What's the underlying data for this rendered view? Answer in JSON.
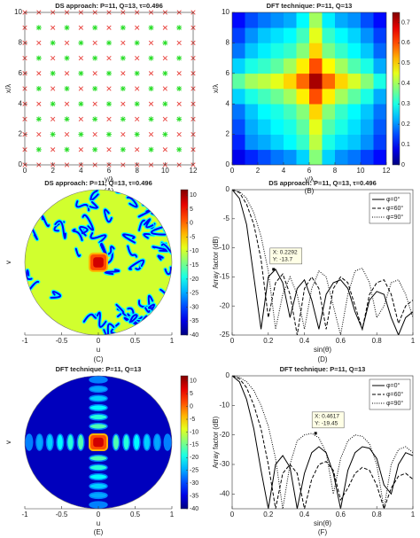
{
  "chart_data": [
    {
      "type": "scatter-grid",
      "caption": "(A)",
      "title": "DS approach: P=11, Q=13, τ=0.496",
      "xlabel": "y/λ",
      "ylabel": "x/λ",
      "xlim": [
        0,
        12
      ],
      "ylim": [
        0,
        10
      ],
      "xticks": [
        0,
        2,
        4,
        6,
        8,
        10,
        12
      ],
      "yticks": [
        0,
        2,
        4,
        6,
        8,
        10
      ],
      "x": [
        0,
        1,
        2,
        3,
        4,
        5,
        6,
        7,
        8,
        9,
        10,
        11,
        12
      ],
      "y": [
        0,
        1,
        2,
        3,
        4,
        5,
        6,
        7,
        8,
        9,
        10
      ],
      "marker_colors": [
        "#e8413c",
        "#22dd22"
      ],
      "values": [
        [
          0,
          0,
          0,
          0,
          0,
          0,
          0,
          0,
          0,
          0,
          0,
          0,
          0
        ],
        [
          0,
          1,
          0,
          1,
          0,
          1,
          0,
          1,
          0,
          1,
          0,
          1,
          0
        ],
        [
          0,
          0,
          1,
          0,
          1,
          0,
          1,
          0,
          1,
          0,
          1,
          0,
          0
        ],
        [
          0,
          1,
          0,
          1,
          0,
          1,
          0,
          1,
          0,
          1,
          0,
          1,
          0
        ],
        [
          0,
          0,
          1,
          0,
          1,
          0,
          1,
          0,
          1,
          0,
          1,
          0,
          0
        ],
        [
          0,
          1,
          0,
          1,
          0,
          1,
          0,
          1,
          0,
          1,
          0,
          1,
          0
        ],
        [
          0,
          0,
          1,
          0,
          1,
          0,
          1,
          0,
          1,
          0,
          1,
          0,
          0
        ],
        [
          0,
          1,
          0,
          1,
          0,
          1,
          0,
          1,
          0,
          1,
          0,
          1,
          0
        ],
        [
          0,
          0,
          1,
          0,
          1,
          0,
          1,
          0,
          1,
          0,
          1,
          0,
          0
        ],
        [
          0,
          1,
          0,
          1,
          0,
          1,
          0,
          1,
          0,
          1,
          0,
          1,
          0
        ],
        [
          0,
          0,
          0,
          0,
          0,
          0,
          0,
          0,
          0,
          0,
          0,
          0,
          0
        ]
      ]
    },
    {
      "type": "heatmap",
      "caption": "(B)",
      "title": "DFT technique: P=11, Q=13",
      "xlabel": "y/λ",
      "ylabel": "x/λ",
      "xlim": [
        0,
        12
      ],
      "ylim": [
        0,
        10
      ],
      "xticks": [
        0,
        2,
        4,
        6,
        8,
        10,
        12
      ],
      "yticks": [
        0,
        2,
        4,
        6,
        8,
        10
      ],
      "colormap": "jet",
      "clim": [
        0,
        0.75
      ],
      "colorbar_ticks": [
        0,
        0.1,
        0.2,
        0.3,
        0.4,
        0.5,
        0.6,
        0.7
      ],
      "values": [
        [
          0.08,
          0.12,
          0.15,
          0.18,
          0.2,
          0.25,
          0.38,
          0.25,
          0.2,
          0.18,
          0.14,
          0.1
        ],
        [
          0.12,
          0.2,
          0.22,
          0.25,
          0.28,
          0.32,
          0.42,
          0.3,
          0.26,
          0.24,
          0.2,
          0.14
        ],
        [
          0.15,
          0.22,
          0.25,
          0.28,
          0.3,
          0.35,
          0.45,
          0.34,
          0.3,
          0.26,
          0.22,
          0.16
        ],
        [
          0.18,
          0.24,
          0.28,
          0.3,
          0.33,
          0.38,
          0.5,
          0.38,
          0.32,
          0.28,
          0.24,
          0.18
        ],
        [
          0.25,
          0.3,
          0.33,
          0.36,
          0.4,
          0.48,
          0.6,
          0.48,
          0.4,
          0.35,
          0.3,
          0.22
        ],
        [
          0.35,
          0.4,
          0.42,
          0.45,
          0.5,
          0.58,
          0.72,
          0.58,
          0.5,
          0.44,
          0.38,
          0.3
        ],
        [
          0.25,
          0.3,
          0.32,
          0.35,
          0.4,
          0.48,
          0.6,
          0.47,
          0.4,
          0.34,
          0.3,
          0.22
        ],
        [
          0.18,
          0.24,
          0.27,
          0.3,
          0.32,
          0.38,
          0.5,
          0.37,
          0.32,
          0.28,
          0.24,
          0.17
        ],
        [
          0.14,
          0.2,
          0.24,
          0.26,
          0.28,
          0.33,
          0.45,
          0.32,
          0.28,
          0.25,
          0.2,
          0.14
        ],
        [
          0.1,
          0.15,
          0.18,
          0.2,
          0.22,
          0.28,
          0.4,
          0.27,
          0.22,
          0.2,
          0.15,
          0.1
        ]
      ]
    },
    {
      "type": "pattern",
      "style": "ds",
      "caption": "(C)",
      "title": "DS approach: P=11, Q=13, τ=0.496",
      "xlabel": "u",
      "ylabel": "v",
      "xlim": [
        -1,
        1
      ],
      "ylim": [
        -1,
        1
      ],
      "xticks": [
        -1,
        -0.5,
        0,
        0.5,
        1
      ],
      "colormap": "jet",
      "clim": [
        -40,
        12
      ],
      "colorbar_ticks": [
        10,
        5,
        0,
        -5,
        -10,
        -15,
        -20,
        -25,
        -30,
        -35,
        -40
      ]
    },
    {
      "type": "line",
      "caption": "(D)",
      "title": "DS approach: P=11, Q=13, τ=0.496",
      "xlabel": "sin(θ)",
      "ylabel": "Array factor (dB)",
      "xlim": [
        0,
        1
      ],
      "ylim": [
        -25,
        0
      ],
      "xticks": [
        0,
        0.2,
        0.4,
        0.6,
        0.8,
        1
      ],
      "yticks": [
        -25,
        -20,
        -15,
        -10,
        -5,
        0
      ],
      "legend": "northeast",
      "x": [
        0,
        0.04,
        0.08,
        0.12,
        0.16,
        0.2,
        0.24,
        0.28,
        0.32,
        0.36,
        0.4,
        0.44,
        0.48,
        0.52,
        0.56,
        0.6,
        0.64,
        0.68,
        0.72,
        0.76,
        0.8,
        0.84,
        0.88,
        0.92,
        0.96,
        1
      ],
      "series": [
        {
          "name": "φ=0°",
          "color": "#000000",
          "dash": "solid",
          "values": [
            0,
            -1.5,
            -6,
            -15,
            -24,
            -15,
            -13.7,
            -16,
            -22,
            -17,
            -15.5,
            -19,
            -24,
            -18,
            -16,
            -15.5,
            -17,
            -21,
            -24,
            -19,
            -17.5,
            -18,
            -22,
            -25,
            -22,
            -21
          ]
        },
        {
          "name": "φ=60°",
          "color": "#000000",
          "dash": "dashed",
          "values": [
            0,
            -0.5,
            -2.5,
            -6,
            -12,
            -22,
            -16,
            -14.5,
            -18,
            -25,
            -17,
            -15,
            -17,
            -24,
            -17,
            -15,
            -16,
            -20,
            -24,
            -18,
            -16,
            -15.5,
            -18,
            -23,
            -20,
            -19
          ]
        },
        {
          "name": "φ=90°",
          "color": "#000000",
          "dash": "dotted",
          "values": [
            0,
            -0.3,
            -1.5,
            -4,
            -8,
            -14,
            -24,
            -18,
            -15,
            -18,
            -24,
            -17,
            -14,
            -15,
            -20,
            -25,
            -18,
            -14,
            -13.5,
            -16,
            -22,
            -20,
            -16,
            -15.5,
            -18,
            -22
          ]
        }
      ],
      "annotations": [
        {
          "x": 0.2292,
          "y": -13.7,
          "lines": [
            "X: 0.2292",
            "Y: -13.7"
          ]
        }
      ]
    },
    {
      "type": "pattern",
      "style": "dft",
      "caption": "(E)",
      "title": "DFT technique: P=11, Q=13",
      "xlabel": "u",
      "ylabel": "v",
      "xlim": [
        -1,
        1
      ],
      "ylim": [
        -1,
        1
      ],
      "xticks": [
        -1,
        -0.5,
        0,
        0.5,
        1
      ],
      "colormap": "jet",
      "clim": [
        -40,
        12
      ],
      "colorbar_ticks": [
        10,
        5,
        0,
        -5,
        -10,
        -15,
        -20,
        -25,
        -30,
        -35,
        -40
      ]
    },
    {
      "type": "line",
      "caption": "(F)",
      "title": "DFT technique: P=11, Q=13",
      "xlabel": "sin(θ)",
      "ylabel": "Array factor (dB)",
      "xlim": [
        0,
        1
      ],
      "ylim": [
        -45,
        0
      ],
      "xticks": [
        0,
        0.2,
        0.4,
        0.6,
        0.8,
        1
      ],
      "yticks": [
        -40,
        -30,
        -20,
        -10,
        0
      ],
      "legend": "northeast",
      "x": [
        0,
        0.04,
        0.08,
        0.12,
        0.16,
        0.2,
        0.24,
        0.28,
        0.32,
        0.36,
        0.4,
        0.44,
        0.48,
        0.52,
        0.56,
        0.6,
        0.64,
        0.68,
        0.72,
        0.76,
        0.8,
        0.84,
        0.88,
        0.92,
        0.96,
        1
      ],
      "series": [
        {
          "name": "φ=0°",
          "color": "#000000",
          "dash": "solid",
          "values": [
            0,
            -2,
            -8,
            -18,
            -32,
            -45,
            -30,
            -27,
            -31,
            -45,
            -33,
            -26,
            -24,
            -26,
            -33,
            -45,
            -32,
            -26,
            -24,
            -24.5,
            -28,
            -37,
            -40,
            -30,
            -26,
            -27
          ]
        },
        {
          "name": "φ=60°",
          "color": "#000000",
          "dash": "dashed",
          "values": [
            0,
            -1,
            -4,
            -10,
            -18,
            -30,
            -45,
            -33,
            -30,
            -33,
            -45,
            -35,
            -30,
            -29,
            -32,
            -42,
            -38,
            -33,
            -31,
            -32,
            -37,
            -45,
            -38,
            -34,
            -33,
            -35
          ]
        },
        {
          "name": "φ=90°",
          "color": "#000000",
          "dash": "dotted",
          "values": [
            0,
            -0.5,
            -2,
            -5,
            -10,
            -17,
            -28,
            -45,
            -30,
            -22,
            -20,
            -19.5,
            -21,
            -26,
            -40,
            -28,
            -22,
            -20,
            -20.5,
            -23,
            -30,
            -45,
            -30,
            -25,
            -24,
            -26
          ]
        }
      ],
      "annotations": [
        {
          "x": 0.4617,
          "y": -19.45,
          "lines": [
            "X: 0.4617",
            "Y: -19.45"
          ]
        }
      ]
    }
  ]
}
